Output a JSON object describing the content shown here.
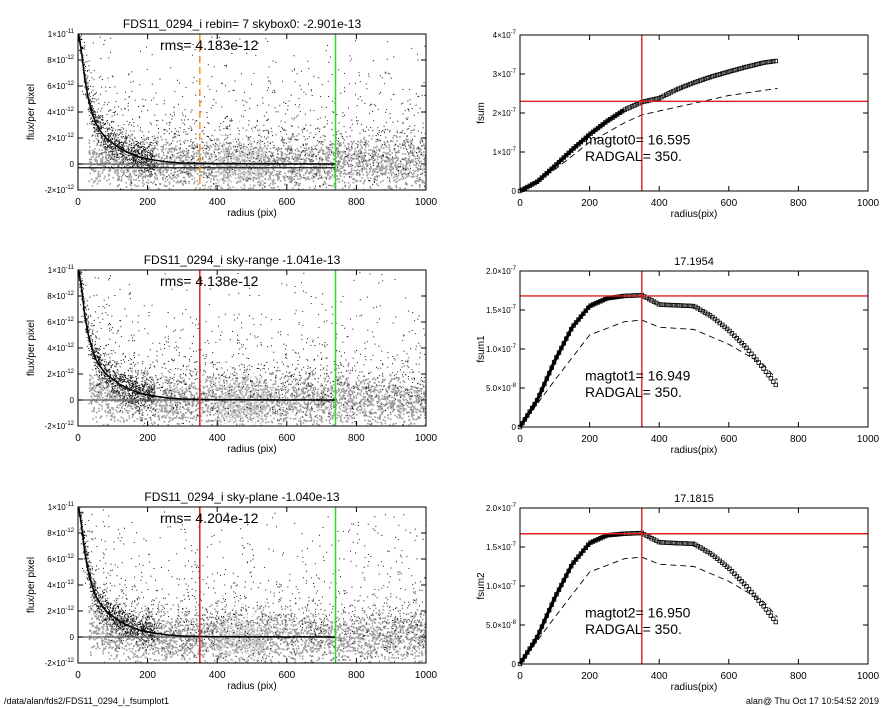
{
  "footer": {
    "path": "/data/alan/fds2/FDS11_0294_i_fsumplot1",
    "stamp": "alan@  Thu Oct 17 10:54:52 2019"
  },
  "colors": {
    "scatter_dark": "#111111",
    "scatter_light": "#9e9e9e",
    "scatter_mid": "#c8c8c8",
    "red_line": "#e0201b",
    "green_line": "#2fd62f",
    "orange_line": "#f7941d"
  },
  "chart_data": [
    {
      "id": "profile0",
      "type": "scatter",
      "title": "FDS11_0294_i rebin= 7    skybox0: -2.901e-13",
      "annotation": "rms= 4.183e-12",
      "xlabel": "radius (pix)",
      "ylabel": "flux/per pixel",
      "xlim": [
        0,
        1000
      ],
      "ylim": [
        -2e-12,
        1e-11
      ],
      "xticks": [
        0,
        200,
        400,
        600,
        800,
        1000
      ],
      "xtick_labels": [
        "0",
        "200",
        "400",
        "600",
        "800",
        "1000"
      ],
      "yticks": [
        -2e-12,
        0,
        2e-12,
        4e-12,
        6e-12,
        8e-12,
        1e-11
      ],
      "ytick_labels": [
        {
          "m": "-2×10",
          "e": "-12"
        },
        {
          "m": "0",
          "e": ""
        },
        {
          "m": "2×10",
          "e": "-12"
        },
        {
          "m": "4×10",
          "e": "-12"
        },
        {
          "m": "6×10",
          "e": "-12"
        },
        {
          "m": "8×10",
          "e": "-12"
        },
        {
          "m": "1×10",
          "e": "-11"
        }
      ],
      "vlines": [
        {
          "x": 350,
          "color": "#f7941d",
          "dash": true
        },
        {
          "x": 740,
          "color": "#2fd62f",
          "dash": false
        }
      ],
      "hlines": [
        {
          "y": 0,
          "color": "#555555"
        },
        {
          "y": -2.901e-13,
          "color": "#111111"
        }
      ],
      "profile": {
        "x": [
          2,
          10,
          20,
          30,
          40,
          50,
          60,
          80,
          100,
          120,
          150,
          180,
          220,
          260,
          300,
          350,
          400,
          450,
          500,
          550,
          600,
          650,
          700,
          740
        ],
        "y": [
          1e-11,
          8.6e-12,
          6.4e-12,
          5e-12,
          4e-12,
          3.2e-12,
          2.7e-12,
          2e-12,
          1.6e-12,
          1.2e-12,
          8e-13,
          5e-13,
          3e-13,
          1.5e-13,
          8e-14,
          5e-14,
          2e-14,
          3e-14,
          1e-14,
          2e-14,
          0,
          1e-14,
          0,
          0
        ]
      }
    },
    {
      "id": "fsum0",
      "type": "scatter",
      "title": "",
      "annotations": [
        "magtot0=  16.595",
        "RADGAL=    350."
      ],
      "xlabel": "radius(pix)",
      "ylabel": "fsum",
      "xlim": [
        0,
        1000
      ],
      "ylim": [
        0,
        4e-07
      ],
      "xticks": [
        0,
        200,
        400,
        600,
        800,
        1000
      ],
      "xtick_labels": [
        "0",
        "200",
        "400",
        "600",
        "800",
        "1000"
      ],
      "yticks": [
        0,
        1e-07,
        2e-07,
        3e-07,
        4e-07
      ],
      "ytick_labels": [
        {
          "m": "0",
          "e": ""
        },
        {
          "m": "1×10",
          "e": "-7"
        },
        {
          "m": "2×10",
          "e": "-7"
        },
        {
          "m": "3×10",
          "e": "-7"
        },
        {
          "m": "4×10",
          "e": "-7"
        }
      ],
      "vline": 350,
      "hline": 2.3e-07,
      "points": {
        "x": [
          0,
          50,
          100,
          150,
          200,
          250,
          300,
          350,
          400,
          450,
          500,
          550,
          600,
          650,
          700,
          740
        ],
        "y": [
          0,
          2.4e-08,
          6.4e-08,
          1.06e-07,
          1.45e-07,
          1.79e-07,
          2.08e-07,
          2.28e-07,
          2.38e-07,
          2.6e-07,
          2.78e-07,
          2.93e-07,
          3.06e-07,
          3.18e-07,
          3.29e-07,
          3.34e-07
        ]
      },
      "dashed": {
        "x": [
          0,
          100,
          200,
          300,
          350,
          400,
          500,
          600,
          700,
          740
        ],
        "y": [
          0,
          5.5e-08,
          1.25e-07,
          1.75e-07,
          1.95e-07,
          2.05e-07,
          2.25e-07,
          2.45e-07,
          2.58e-07,
          2.63e-07
        ]
      }
    },
    {
      "id": "profile1",
      "type": "scatter",
      "title": "FDS11_0294_i sky-range -1.041e-13",
      "annotation": "rms= 4.138e-12",
      "xlabel": "radius (pix)",
      "ylabel": "flux/per pixel",
      "xlim": [
        0,
        1000
      ],
      "ylim": [
        -2e-12,
        1e-11
      ],
      "xticks": [
        0,
        200,
        400,
        600,
        800,
        1000
      ],
      "xtick_labels": [
        "0",
        "200",
        "400",
        "600",
        "800",
        "1000"
      ],
      "yticks": [
        -2e-12,
        0,
        2e-12,
        4e-12,
        6e-12,
        8e-12,
        1e-11
      ],
      "ytick_labels": [
        {
          "m": "-2×10",
          "e": "-12"
        },
        {
          "m": "0",
          "e": ""
        },
        {
          "m": "2×10",
          "e": "-12"
        },
        {
          "m": "4×10",
          "e": "-12"
        },
        {
          "m": "6×10",
          "e": "-12"
        },
        {
          "m": "8×10",
          "e": "-12"
        },
        {
          "m": "1×10",
          "e": "-11"
        }
      ],
      "vlines": [
        {
          "x": 350,
          "color": "#e0201b",
          "dash": false
        },
        {
          "x": 740,
          "color": "#2fd62f",
          "dash": false
        }
      ],
      "hlines": [
        {
          "y": 0,
          "color": "#555555"
        }
      ],
      "profile": {
        "x": [
          2,
          10,
          20,
          30,
          40,
          50,
          60,
          80,
          100,
          120,
          150,
          180,
          220,
          260,
          300,
          350,
          400,
          450,
          500,
          550,
          600,
          650,
          700,
          740
        ],
        "y": [
          1e-11,
          8.6e-12,
          6.4e-12,
          5e-12,
          4e-12,
          3.2e-12,
          2.7e-12,
          2e-12,
          1.6e-12,
          1.2e-12,
          8e-13,
          5e-13,
          3e-13,
          1.5e-13,
          8e-14,
          5e-14,
          2e-14,
          3e-14,
          1e-14,
          2e-14,
          0,
          1e-14,
          0,
          0
        ]
      }
    },
    {
      "id": "fsum1",
      "type": "scatter",
      "title": "17.1954",
      "annotations": [
        "magtot1=  16.949",
        "RADGAL=    350."
      ],
      "xlabel": "radius(pix)",
      "ylabel": "fsum1",
      "xlim": [
        0,
        1000
      ],
      "ylim": [
        0,
        2e-07
      ],
      "xticks": [
        0,
        200,
        400,
        600,
        800,
        1000
      ],
      "xtick_labels": [
        "0",
        "200",
        "400",
        "600",
        "800",
        "1000"
      ],
      "yticks": [
        0,
        5e-08,
        1e-07,
        1.5e-07,
        2e-07
      ],
      "ytick_labels": [
        {
          "m": "0",
          "e": ""
        },
        {
          "m": "5.0×10",
          "e": "-8"
        },
        {
          "m": "1.0×10",
          "e": "-7"
        },
        {
          "m": "1.5×10",
          "e": "-7"
        },
        {
          "m": "2.0×10",
          "e": "-7"
        }
      ],
      "vline": 350,
      "hline": 1.68e-07,
      "points": {
        "x": [
          0,
          50,
          100,
          150,
          200,
          250,
          300,
          350,
          400,
          450,
          500,
          550,
          600,
          650,
          700,
          740
        ],
        "y": [
          0,
          3.5e-08,
          8.5e-08,
          1.28e-07,
          1.55e-07,
          1.65e-07,
          1.68e-07,
          1.69e-07,
          1.57e-07,
          1.56e-07,
          1.55e-07,
          1.42e-07,
          1.24e-07,
          1.02e-07,
          7.5e-08,
          5.1e-08
        ]
      },
      "dashed": {
        "x": [
          0,
          100,
          200,
          300,
          350,
          400,
          500,
          600,
          700,
          740
        ],
        "y": [
          0,
          6e-08,
          1.18e-07,
          1.35e-07,
          1.37e-07,
          1.28e-07,
          1.25e-07,
          1.06e-07,
          8e-08,
          6e-08
        ]
      }
    },
    {
      "id": "profile2",
      "type": "scatter",
      "title": "FDS11_0294_i sky-plane -1.040e-13",
      "annotation": "rms= 4.204e-12",
      "xlabel": "radius (pix)",
      "ylabel": "flux/per pixel",
      "xlim": [
        0,
        1000
      ],
      "ylim": [
        -2e-12,
        1e-11
      ],
      "xticks": [
        0,
        200,
        400,
        600,
        800,
        1000
      ],
      "xtick_labels": [
        "0",
        "200",
        "400",
        "600",
        "800",
        "1000"
      ],
      "yticks": [
        -2e-12,
        0,
        2e-12,
        4e-12,
        6e-12,
        8e-12,
        1e-11
      ],
      "ytick_labels": [
        {
          "m": "-2×10",
          "e": "-12"
        },
        {
          "m": "0",
          "e": ""
        },
        {
          "m": "2×10",
          "e": "-12"
        },
        {
          "m": "4×10",
          "e": "-12"
        },
        {
          "m": "6×10",
          "e": "-12"
        },
        {
          "m": "8×10",
          "e": "-12"
        },
        {
          "m": "1×10",
          "e": "-11"
        }
      ],
      "vlines": [
        {
          "x": 350,
          "color": "#e0201b",
          "dash": false
        },
        {
          "x": 740,
          "color": "#2fd62f",
          "dash": false
        }
      ],
      "hlines": [
        {
          "y": 0,
          "color": "#555555"
        }
      ],
      "profile": {
        "x": [
          2,
          10,
          20,
          30,
          40,
          50,
          60,
          80,
          100,
          120,
          150,
          180,
          220,
          260,
          300,
          350,
          400,
          450,
          500,
          550,
          600,
          650,
          700,
          740
        ],
        "y": [
          1e-11,
          8.6e-12,
          6.4e-12,
          5e-12,
          4e-12,
          3.2e-12,
          2.7e-12,
          2e-12,
          1.6e-12,
          1.2e-12,
          8e-13,
          5e-13,
          3e-13,
          1.5e-13,
          8e-14,
          5e-14,
          2e-14,
          3e-14,
          1e-14,
          2e-14,
          0,
          1e-14,
          0,
          0
        ]
      }
    },
    {
      "id": "fsum2",
      "type": "scatter",
      "title": "17.1815",
      "annotations": [
        "magtot2=  16.950",
        "RADGAL=    350."
      ],
      "xlabel": "radius(pix)",
      "ylabel": "fsum2",
      "xlim": [
        0,
        1000
      ],
      "ylim": [
        0,
        2e-07
      ],
      "xticks": [
        0,
        200,
        400,
        600,
        800,
        1000
      ],
      "xtick_labels": [
        "0",
        "200",
        "400",
        "600",
        "800",
        "1000"
      ],
      "yticks": [
        0,
        5e-08,
        1e-07,
        1.5e-07,
        2e-07
      ],
      "ytick_labels": [
        {
          "m": "0",
          "e": ""
        },
        {
          "m": "5.0×10",
          "e": "-8"
        },
        {
          "m": "1.0×10",
          "e": "-7"
        },
        {
          "m": "1.5×10",
          "e": "-7"
        },
        {
          "m": "2.0×10",
          "e": "-7"
        }
      ],
      "vline": 350,
      "hline": 1.67e-07,
      "points": {
        "x": [
          0,
          50,
          100,
          150,
          200,
          250,
          300,
          350,
          400,
          450,
          500,
          550,
          600,
          650,
          700,
          740
        ],
        "y": [
          0,
          3.5e-08,
          8.5e-08,
          1.28e-07,
          1.55e-07,
          1.65e-07,
          1.67e-07,
          1.68e-07,
          1.56e-07,
          1.55e-07,
          1.54e-07,
          1.41e-07,
          1.23e-07,
          1e-07,
          7.4e-08,
          5.1e-08
        ]
      },
      "dashed": {
        "x": [
          0,
          100,
          200,
          300,
          350,
          400,
          500,
          600,
          700,
          740
        ],
        "y": [
          0,
          6e-08,
          1.18e-07,
          1.35e-07,
          1.37e-07,
          1.28e-07,
          1.25e-07,
          1.06e-07,
          8e-08,
          6e-08
        ]
      }
    }
  ]
}
